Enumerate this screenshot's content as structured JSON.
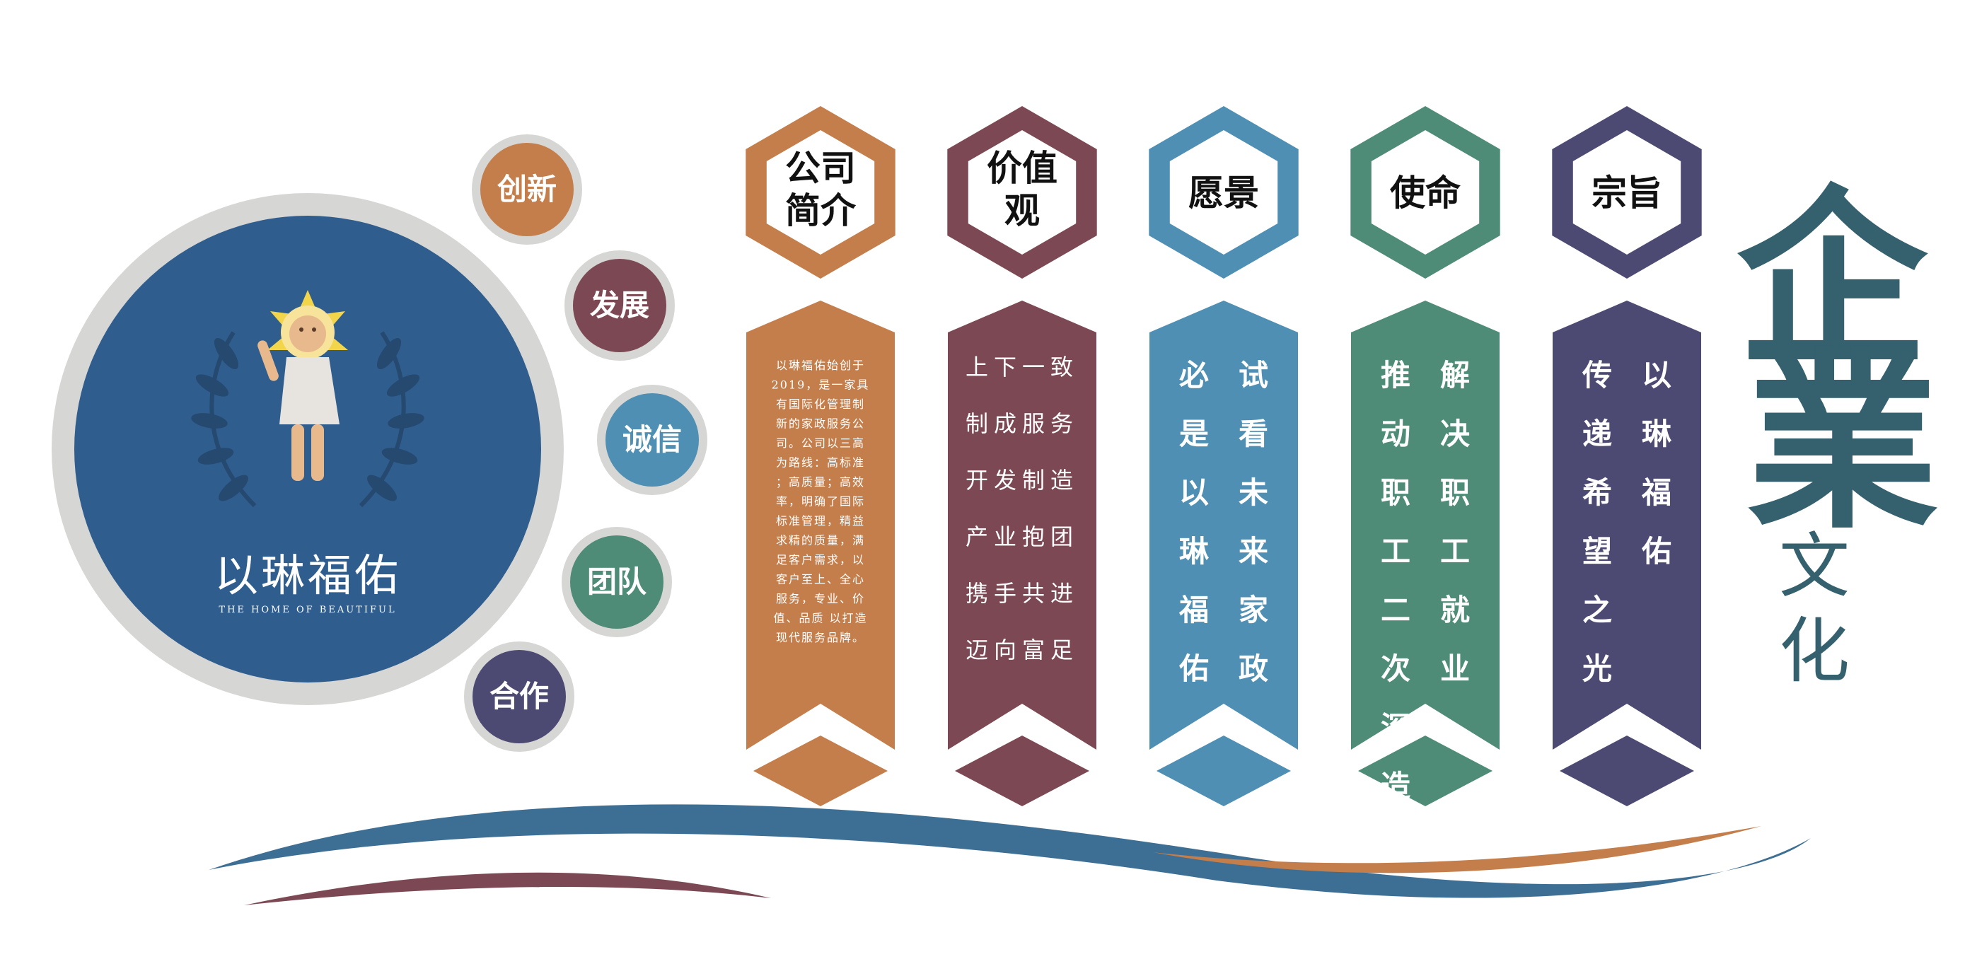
{
  "colors": {
    "orange": "#C47E4B",
    "maroon": "#7C4853",
    "blue": "#4F8FB3",
    "green": "#4E8C78",
    "purple": "#4C4A72",
    "navy": "#2E5D8E",
    "grey_ring": "#D6D6D4",
    "teal_title": "#35606E",
    "wave_blue": "#3D6E94"
  },
  "logo": {
    "name": "以琳福佑",
    "subtitle": "THE HOME OF BEAUTIFUL"
  },
  "values": [
    "创新",
    "发展",
    "诚信",
    "团队",
    "合作"
  ],
  "panels": [
    {
      "title_lines": [
        "公司",
        "简介"
      ],
      "color_key": "orange",
      "body_lines": [
        "以琳福佑始创于",
        "2019，是一家具",
        "有国际化管理制",
        "新的家政服务公",
        "司。公司以三高",
        "为路线：高标准",
        "；高质量；高效",
        "率，明确了国际",
        "标准管理，精益",
        "求精的质量，满",
        "足客户需求，以",
        "客户至上、全心",
        "服务，专业、价",
        "值、品质 以打造",
        "现代服务品牌。"
      ]
    },
    {
      "title_lines": [
        "价值",
        "观"
      ],
      "color_key": "maroon",
      "body_lines": [
        "上下一致",
        "制成服务",
        "开发制造",
        "产业抱团",
        "携手共进",
        "迈向富足"
      ]
    },
    {
      "title_lines": [
        "愿景"
      ],
      "color_key": "blue",
      "columns": [
        [
          "试",
          "看",
          "未",
          "来",
          "家",
          "政"
        ],
        [
          "必",
          "是",
          "以",
          "琳",
          "福",
          "佑"
        ]
      ]
    },
    {
      "title_lines": [
        "使命"
      ],
      "color_key": "green",
      "columns": [
        [
          "解",
          "决",
          "职",
          "工",
          "就",
          "业"
        ],
        [
          "推",
          "动",
          "职",
          "工",
          "二",
          "次",
          "深",
          "造"
        ]
      ]
    },
    {
      "title_lines": [
        "宗旨"
      ],
      "color_key": "purple",
      "columns": [
        [
          "以",
          "琳",
          "福",
          "佑"
        ],
        [
          "传",
          "递",
          "希",
          "望",
          "之",
          "光"
        ]
      ]
    }
  ],
  "headline": {
    "big": [
      "企",
      "業"
    ],
    "small": [
      "文",
      "化"
    ]
  },
  "icons": {
    "mascot": "cherub-with-halo-icon",
    "wreath": "laurel-wreath-icon"
  }
}
